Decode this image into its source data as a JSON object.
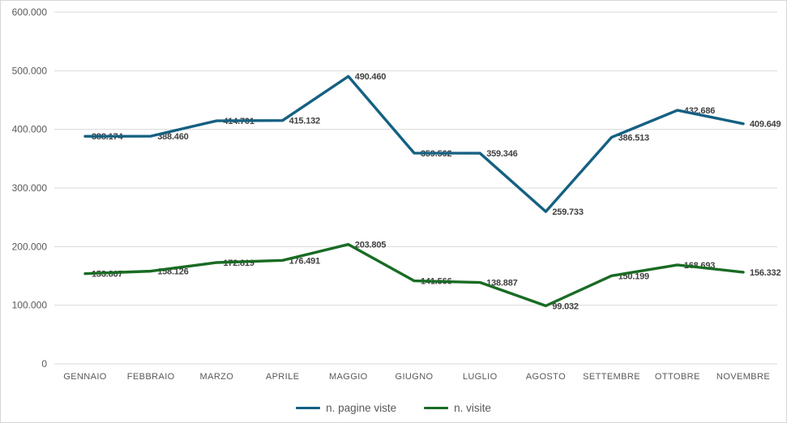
{
  "chart_data": {
    "type": "line",
    "title": "",
    "xlabel": "",
    "ylabel": "",
    "ylim": [
      0,
      600000
    ],
    "grid": true,
    "legend_position": "bottom",
    "categories": [
      "GENNAIO",
      "FEBBRAIO",
      "MARZO",
      "APRILE",
      "MAGGIO",
      "GIUGNO",
      "LUGLIO",
      "AGOSTO",
      "SETTEMBRE",
      "OTTOBRE",
      "NOVEMBRE"
    ],
    "series": [
      {
        "id": "pagine-viste",
        "name": "n. pagine viste",
        "color": "#156082",
        "values": [
          388174,
          388460,
          414701,
          415132,
          490460,
          359562,
          359346,
          259733,
          386513,
          432686,
          409649
        ],
        "labels": [
          "388.174",
          "388.460",
          "414.701",
          "415.132",
          "490.460",
          "359.562",
          "359.346",
          "259.733",
          "386.513",
          "432.686",
          "409.649"
        ]
      },
      {
        "id": "visite",
        "name": "n. visite",
        "color": "#196B24",
        "values": [
          153867,
          158126,
          172819,
          176491,
          203805,
          141566,
          138887,
          99032,
          150199,
          168693,
          156332
        ],
        "labels": [
          "153.867",
          "158.126",
          "172.819",
          "176.491",
          "203.805",
          "141.566",
          "138.887",
          "99.032",
          "150.199",
          "168.693",
          "156.332"
        ]
      }
    ],
    "y_ticks": [
      {
        "value": 600000,
        "label": "600.000"
      },
      {
        "value": 500000,
        "label": "500.000"
      },
      {
        "value": 400000,
        "label": "400.000"
      },
      {
        "value": 300000,
        "label": "300.000"
      },
      {
        "value": 200000,
        "label": "200.000"
      },
      {
        "value": 100000,
        "label": "100.000"
      },
      {
        "value": 0,
        "label": "0"
      }
    ],
    "legend": [
      {
        "label": "n. pagine viste",
        "color": "#156082"
      },
      {
        "label": "n. visite",
        "color": "#196B24"
      }
    ],
    "colors": {
      "gridline": "#d9d9d9",
      "axis_text": "#595959",
      "data_label": "#404040",
      "background": "#ffffff"
    }
  }
}
